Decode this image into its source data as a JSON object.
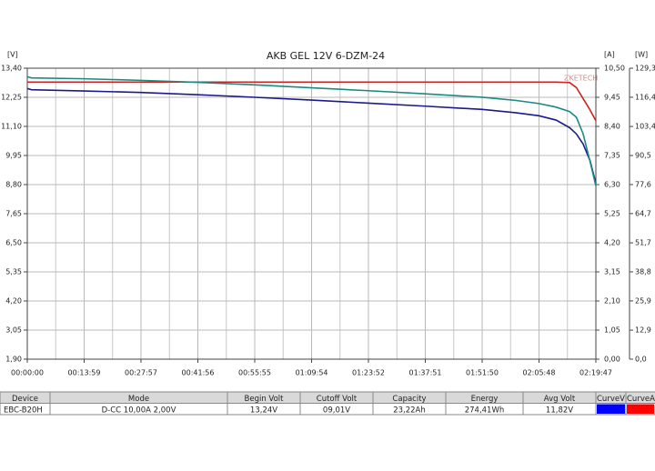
{
  "chart_data": {
    "type": "line",
    "title": "AKB GEL 12V 6-DZM-24",
    "watermark": "ZKETECH",
    "y_unit": "[V]",
    "y2_unit": "[A]",
    "y3_unit": "[W]",
    "x": [
      0,
      60,
      839,
      1677,
      2516,
      3355,
      4194,
      5032,
      5871,
      6710,
      7200,
      7548,
      7800,
      8000,
      8100,
      8200,
      8300,
      8387
    ],
    "series": [
      {
        "color": "#1a1a8c",
        "axis": "y",
        "values": [
          12.6,
          12.55,
          12.5,
          12.44,
          12.35,
          12.25,
          12.14,
          12.02,
          11.9,
          11.77,
          11.64,
          11.52,
          11.35,
          11.05,
          10.8,
          10.4,
          9.75,
          8.85
        ]
      },
      {
        "color": "#cc2222",
        "axis": "y2",
        "values": [
          10.0,
          10.0,
          10.0,
          10.0,
          10.0,
          10.0,
          10.0,
          10.0,
          10.0,
          10.0,
          10.0,
          10.0,
          10.0,
          9.98,
          9.8,
          9.4,
          9.0,
          8.6
        ]
      },
      {
        "color": "#1a8a80",
        "axis": "y3",
        "values": [
          125.5,
          125.0,
          124.6,
          123.9,
          123.0,
          121.9,
          120.6,
          119.3,
          117.9,
          116.4,
          115.0,
          113.6,
          112.0,
          110.0,
          107.5,
          100.0,
          88.0,
          77.0
        ]
      }
    ],
    "xlim": [
      0,
      8387
    ],
    "xticks": [
      {
        "value": 0,
        "label": "00:00:00"
      },
      {
        "value": 839,
        "label": "00:13:59"
      },
      {
        "value": 1677,
        "label": "00:27:57"
      },
      {
        "value": 2516,
        "label": "00:41:56"
      },
      {
        "value": 3355,
        "label": "00:55:55"
      },
      {
        "value": 4194,
        "label": "01:09:54"
      },
      {
        "value": 5032,
        "label": "01:23:52"
      },
      {
        "value": 5871,
        "label": "01:37:51"
      },
      {
        "value": 6710,
        "label": "01:51:50"
      },
      {
        "value": 7548,
        "label": "02:05:48"
      },
      {
        "value": 8387,
        "label": "02:19:47"
      }
    ],
    "ylim": [
      1.9,
      13.4
    ],
    "yticks": [
      {
        "value": 1.9,
        "label": "1,90"
      },
      {
        "value": 3.05,
        "label": "3,05"
      },
      {
        "value": 4.2,
        "label": "4,20"
      },
      {
        "value": 5.35,
        "label": "5,35"
      },
      {
        "value": 6.5,
        "label": "6,50"
      },
      {
        "value": 7.65,
        "label": "7,65"
      },
      {
        "value": 8.8,
        "label": "8,80"
      },
      {
        "value": 9.95,
        "label": "9,95"
      },
      {
        "value": 11.1,
        "label": "11,10"
      },
      {
        "value": 12.25,
        "label": "12,25"
      },
      {
        "value": 13.4,
        "label": "13,40"
      }
    ],
    "y2lim": [
      0,
      10.5
    ],
    "y2ticks": [
      {
        "value": 0,
        "label": "0,00"
      },
      {
        "value": 1.05,
        "label": "1,05"
      },
      {
        "value": 2.1,
        "label": "2,10"
      },
      {
        "value": 3.15,
        "label": "3,15"
      },
      {
        "value": 4.2,
        "label": "4,20"
      },
      {
        "value": 5.25,
        "label": "5,25"
      },
      {
        "value": 6.3,
        "label": "6,30"
      },
      {
        "value": 7.35,
        "label": "7,35"
      },
      {
        "value": 8.4,
        "label": "8,40"
      },
      {
        "value": 9.45,
        "label": "9,45"
      },
      {
        "value": 10.5,
        "label": "10,50"
      }
    ],
    "y3lim": [
      0,
      129.3
    ],
    "y3ticks": [
      {
        "value": 0,
        "label": "0,0"
      },
      {
        "value": 12.9,
        "label": "12,9"
      },
      {
        "value": 25.9,
        "label": "25,9"
      },
      {
        "value": 38.8,
        "label": "38,8"
      },
      {
        "value": 51.7,
        "label": "51,7"
      },
      {
        "value": 64.7,
        "label": "64,7"
      },
      {
        "value": 77.6,
        "label": "77,6"
      },
      {
        "value": 90.5,
        "label": "90,5"
      },
      {
        "value": 103.4,
        "label": "103,4"
      },
      {
        "value": 116.4,
        "label": "116,4"
      },
      {
        "value": 129.3,
        "label": "129,3"
      }
    ],
    "grid": true
  },
  "table": {
    "columns": [
      "Device",
      "Mode",
      "Begin Volt",
      "Cutoff Volt",
      "Capacity",
      "Energy",
      "Avg Volt",
      "CurveV",
      "CurveA"
    ],
    "rows": [
      [
        "EBC-B20H",
        "D-CC  10,00A  2,00V",
        "13,24V",
        "09,01V",
        "23,22Ah",
        "274,41Wh",
        "11,82V"
      ]
    ],
    "curve_colors": [
      "#0000ff",
      "#ff0000"
    ]
  }
}
